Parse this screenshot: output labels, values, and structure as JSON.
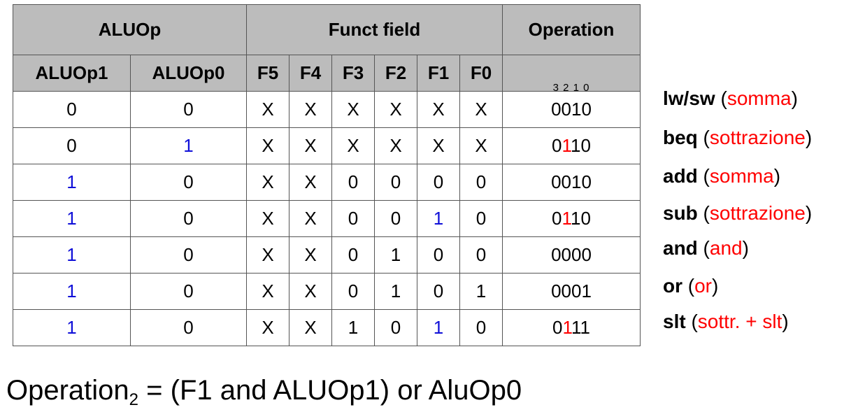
{
  "table": {
    "group_headers": {
      "aluop": "ALUOp",
      "funct": "Funct field",
      "operation": "Operation"
    },
    "sub_headers": [
      "ALUOp1",
      "ALUOp0",
      "F5",
      "F4",
      "F3",
      "F2",
      "F1",
      "F0"
    ],
    "operation_bit_indices": "3 2 1 0",
    "rows": [
      {
        "aluop1": "0",
        "aluop0": "0",
        "f5": "X",
        "f4": "X",
        "f3": "X",
        "f2": "X",
        "f1": "X",
        "f0": "X",
        "op_pre": "0",
        "op_bit2": "0",
        "op_post": "10"
      },
      {
        "aluop1": "0",
        "aluop0": "1",
        "f5": "X",
        "f4": "X",
        "f3": "X",
        "f2": "X",
        "f1": "X",
        "f0": "X",
        "op_pre": "0",
        "op_bit2": "1",
        "op_post": "10"
      },
      {
        "aluop1": "1",
        "aluop0": "0",
        "f5": "X",
        "f4": "X",
        "f3": "0",
        "f2": "0",
        "f1": "0",
        "f0": "0",
        "op_pre": "0",
        "op_bit2": "0",
        "op_post": "10"
      },
      {
        "aluop1": "1",
        "aluop0": "0",
        "f5": "X",
        "f4": "X",
        "f3": "0",
        "f2": "0",
        "f1": "1",
        "f0": "0",
        "op_pre": "0",
        "op_bit2": "1",
        "op_post": "10"
      },
      {
        "aluop1": "1",
        "aluop0": "0",
        "f5": "X",
        "f4": "X",
        "f3": "0",
        "f2": "1",
        "f1": "0",
        "f0": "0",
        "op_pre": "0",
        "op_bit2": "0",
        "op_post": "00"
      },
      {
        "aluop1": "1",
        "aluop0": "0",
        "f5": "X",
        "f4": "X",
        "f3": "0",
        "f2": "1",
        "f1": "0",
        "f0": "1",
        "op_pre": "0",
        "op_bit2": "0",
        "op_post": "01"
      },
      {
        "aluop1": "1",
        "aluop0": "0",
        "f5": "X",
        "f4": "X",
        "f3": "1",
        "f2": "0",
        "f1": "1",
        "f0": "0",
        "op_pre": "0",
        "op_bit2": "1",
        "op_post": "11"
      }
    ]
  },
  "instructions": [
    {
      "name": "lw/sw",
      "desc": "somma"
    },
    {
      "name": "beq",
      "desc": "sottrazione"
    },
    {
      "name": "add",
      "desc": "somma"
    },
    {
      "name": "sub",
      "desc": "sottrazione"
    },
    {
      "name": "and",
      "desc": "and"
    },
    {
      "name": "or",
      "desc": "or"
    },
    {
      "name": "slt",
      "desc": "sottr. + slt"
    }
  ],
  "formula": {
    "lhs": "Operation",
    "subscript": "2",
    "rhs": " = (F1 and ALUOp1) or AluOp0"
  },
  "colors": {
    "header_bg": "#bcbcbc",
    "highlight_blue": "#1010d8",
    "highlight_red": "#ff0000"
  }
}
